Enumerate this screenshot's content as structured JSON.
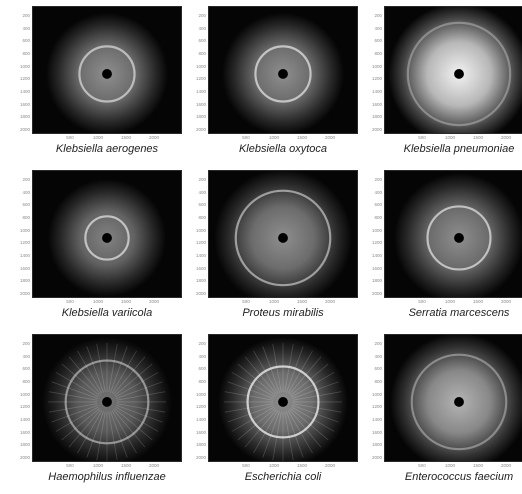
{
  "figure": {
    "yticks": [
      "200",
      "400",
      "600",
      "800",
      "1000",
      "1200",
      "1400",
      "1600",
      "1800",
      "2000"
    ],
    "xticks": [
      "500",
      "1000",
      "1500",
      "2000"
    ],
    "panels": [
      {
        "species": "Klebsiella aerogenes"
      },
      {
        "species": "Klebsiella oxytoca"
      },
      {
        "species": "Klebsiella pneumoniae"
      },
      {
        "species": "Klebsiella variicola"
      },
      {
        "species": "Proteus mirabilis"
      },
      {
        "species": "Serratia marcescens"
      },
      {
        "species": "Haemophilus influenzae"
      },
      {
        "species": "Escherichia coli"
      },
      {
        "species": "Enterococcus faecium"
      }
    ]
  }
}
